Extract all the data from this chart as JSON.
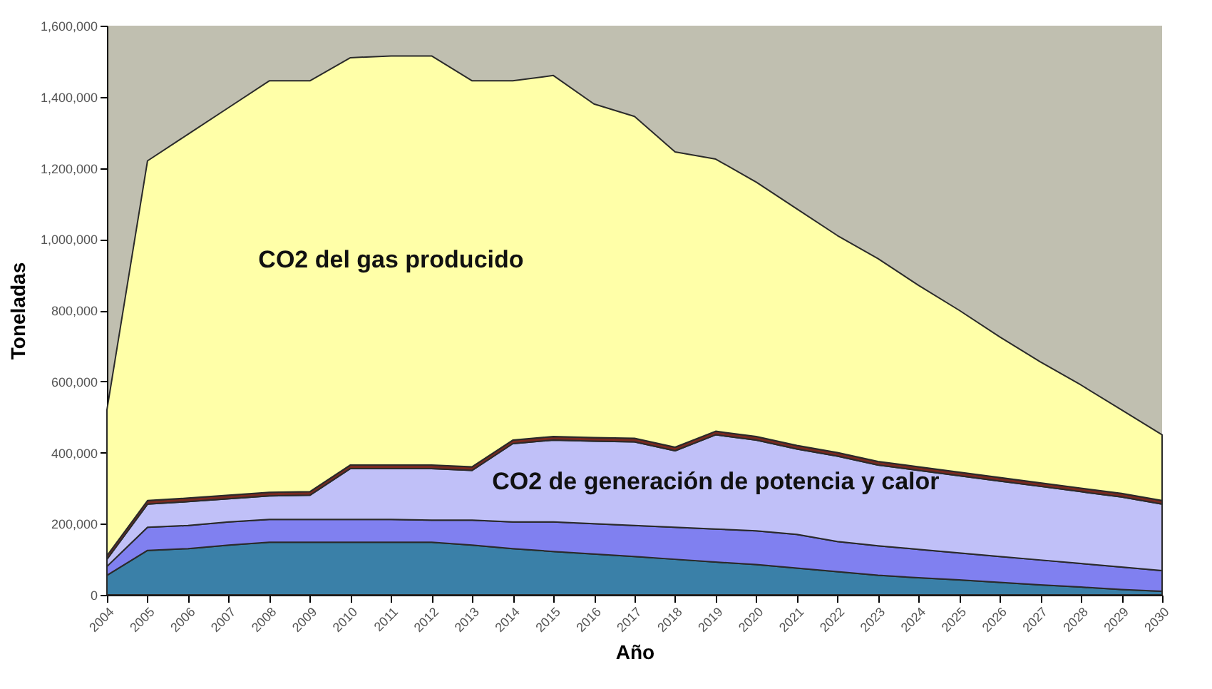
{
  "chart_data": {
    "type": "area",
    "stacked": true,
    "xlabel": "Año",
    "ylabel": "Toneladas",
    "categories": [
      "2004",
      "2005",
      "2006",
      "2007",
      "2008",
      "2009",
      "2010",
      "2011",
      "2012",
      "2013",
      "2014",
      "2015",
      "2016",
      "2017",
      "2018",
      "2019",
      "2020",
      "2021",
      "2022",
      "2023",
      "2024",
      "2025",
      "2026",
      "2027",
      "2028",
      "2029",
      "2030"
    ],
    "ylim": [
      0,
      1600000
    ],
    "yticks": [
      {
        "value": 0,
        "label": "0"
      },
      {
        "value": 200000,
        "label": "200,000"
      },
      {
        "value": 400000,
        "label": "400,000"
      },
      {
        "value": 600000,
        "label": "600,000"
      },
      {
        "value": 800000,
        "label": "800,000"
      },
      {
        "value": 1000000,
        "label": "1,000,000"
      },
      {
        "value": 1200000,
        "label": "1,200,000"
      },
      {
        "value": 1400000,
        "label": "1,400,000"
      },
      {
        "value": 1600000,
        "label": "1,600,000"
      }
    ],
    "grid": false,
    "legend": false,
    "series": [
      {
        "color": "#3a80a8",
        "values": [
          55000,
          125000,
          130000,
          140000,
          148000,
          148000,
          148000,
          148000,
          148000,
          140000,
          130000,
          122000,
          115000,
          108000,
          100000,
          92000,
          85000,
          75000,
          65000,
          55000,
          48000,
          42000,
          35000,
          28000,
          22000,
          15000,
          10000
        ]
      },
      {
        "color": "#8080f0",
        "values": [
          25000,
          65000,
          65000,
          65000,
          64000,
          64000,
          64000,
          64000,
          62000,
          70000,
          75000,
          83000,
          85000,
          87000,
          90000,
          93000,
          95000,
          95000,
          85000,
          83000,
          80000,
          76000,
          73000,
          70000,
          66000,
          63000,
          58000
        ]
      },
      {
        "name": "CO2 de generación de potencia y calor",
        "color": "#c0c0f8",
        "values": [
          20000,
          65000,
          67000,
          65000,
          66000,
          68000,
          143000,
          143000,
          145000,
          140000,
          220000,
          230000,
          232000,
          235000,
          215000,
          265000,
          255000,
          240000,
          240000,
          227000,
          222000,
          217000,
          212000,
          207000,
          202000,
          197000,
          187000
        ]
      },
      {
        "color": "#7a2a20",
        "values": [
          10000,
          10000,
          10000,
          10000,
          10000,
          10000,
          10000,
          10000,
          10000,
          10000,
          10000,
          10000,
          10000,
          10000,
          10000,
          10000,
          10000,
          10000,
          10000,
          10000,
          10000,
          10000,
          10000,
          10000,
          10000,
          10000,
          10000
        ]
      },
      {
        "name": "CO2 del gas producido",
        "color": "#ffffa8",
        "values": [
          410000,
          955000,
          1023000,
          1090000,
          1157000,
          1155000,
          1145000,
          1150000,
          1150000,
          1085000,
          1010000,
          1015000,
          938000,
          905000,
          830000,
          765000,
          715000,
          665000,
          610000,
          570000,
          510000,
          455000,
          395000,
          340000,
          290000,
          235000,
          185000
        ]
      }
    ]
  }
}
